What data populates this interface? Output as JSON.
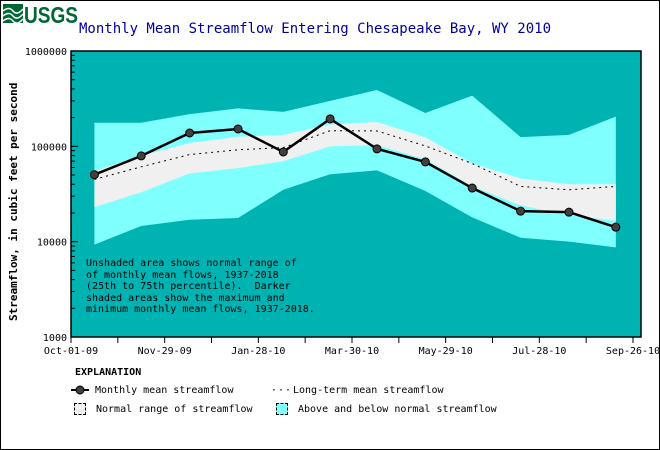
{
  "logo_text": "USGS",
  "chart_data": {
    "type": "line",
    "title": "Monthly Mean Streamflow Entering Chesapeake Bay, WY 2010",
    "ylabel": "Streamflow, in cubic feet per second",
    "xlabel": "",
    "y_scale": "log",
    "ylim": [
      1000,
      1000000
    ],
    "y_ticks": [
      "1000",
      "10000",
      "100000",
      "1000000"
    ],
    "xlim": [
      "2009-10-01",
      "2010-09-26"
    ],
    "x_ticks": [
      "Oct-01-09",
      "Nov-29-09",
      "Jan-28-10",
      "Mar-30-10",
      "May-29-10",
      "Jul-28-10",
      "Sep-26-10"
    ],
    "x": [
      "2009-10-16",
      "2009-11-15",
      "2009-12-16",
      "2010-01-16",
      "2010-02-14",
      "2010-03-16",
      "2010-04-15",
      "2010-05-16",
      "2010-06-15",
      "2010-07-16",
      "2010-08-16",
      "2010-09-15"
    ],
    "series": [
      {
        "name": "Monthly mean streamflow",
        "values": [
          50400,
          79400,
          138000,
          152000,
          87300,
          194000,
          94000,
          68600,
          36500,
          20900,
          20400,
          14200
        ]
      },
      {
        "name": "Long-term mean streamflow",
        "values": [
          45000,
          61000,
          82000,
          92000,
          97000,
          146000,
          145000,
          101000,
          66000,
          38000,
          35000,
          38000
        ]
      }
    ],
    "bands": {
      "max": [
        177000,
        177000,
        218000,
        250000,
        230000,
        300000,
        390000,
        224000,
        340000,
        125000,
        132000,
        205000
      ],
      "p75": [
        55000,
        80000,
        108000,
        126000,
        132000,
        170000,
        180000,
        124000,
        66000,
        46000,
        40000,
        40000
      ],
      "p25": [
        23000,
        33000,
        52000,
        59000,
        70000,
        100000,
        103000,
        73000,
        38000,
        24000,
        19000,
        16500
      ],
      "min": [
        9300,
        14600,
        17000,
        17700,
        35000,
        51000,
        56000,
        34000,
        18000,
        11000,
        10000,
        8700
      ]
    },
    "colors": {
      "background": "#00b3b3",
      "outer_band": "#80ffff",
      "normal_band": "#f0f0f0",
      "line": "#000000",
      "marker": "#404040",
      "title": "#000099"
    },
    "annotation": "Unshaded area shows normal range of\nof monthly mean flows, 1937-2018\n(25th to 75th percentile).  Darker\nshaded areas show the maximum and\nminimum monthly mean flows, 1937-2018.",
    "legend": {
      "header": "EXPLANATION",
      "items": [
        "Monthly mean streamflow",
        "Long-term mean streamflow",
        "Normal range of streamflow",
        "Above and below normal streamflow"
      ]
    }
  }
}
